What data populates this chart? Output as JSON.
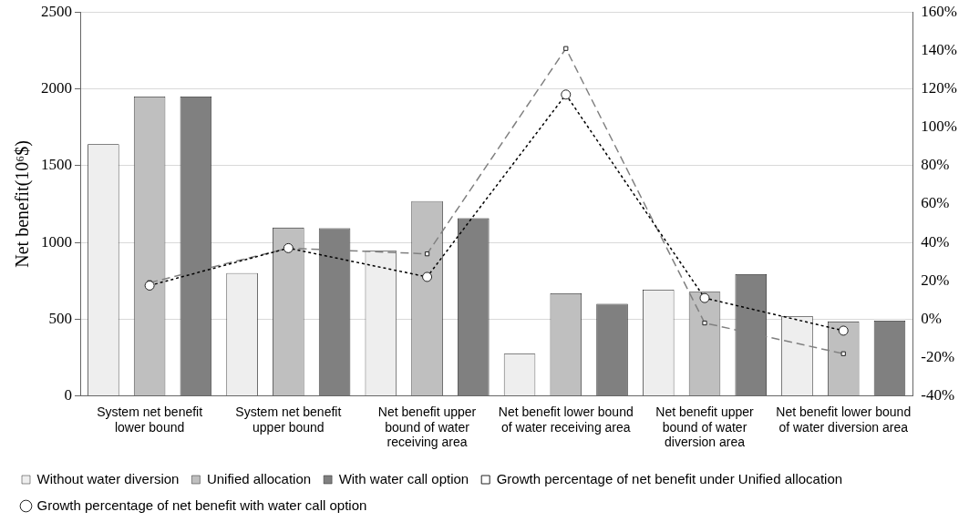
{
  "chart_data": {
    "type": "bar",
    "ylabel": "Net benefit(10⁶$)",
    "categories": [
      "System net benefit lower bound",
      "System net benefit upper bound",
      "Net benefit upper bound of water receiving area",
      "Net benefit lower bound of water receiving area",
      "Net benefit upper bound of water diversion area",
      "Net benefit lower bound of water diversion area"
    ],
    "series": [
      {
        "name": "Without water diversion",
        "color": "#eeeeee",
        "values": [
          1640,
          800,
          945,
          275,
          692,
          520
        ]
      },
      {
        "name": "Unified allocation",
        "color": "#bfbfbf",
        "values": [
          1950,
          1096,
          1269,
          668,
          679,
          485
        ]
      },
      {
        "name": "With water call option",
        "color": "#808080",
        "values": [
          1950,
          1092,
          1157,
          600,
          793,
          490
        ]
      },
      {
        "name": "Growth percentage of net benefit under Unified allocation",
        "type": "line",
        "axis": "y2",
        "color": "#808080",
        "marker": "square",
        "line_style": "dashed",
        "values": [
          19,
          37,
          34,
          141,
          -2,
          -18
        ]
      },
      {
        "name": "Growth percentage of net benefit with water call option",
        "type": "line",
        "axis": "y2",
        "color": "#000000",
        "marker": "circle",
        "line_style": "dotted",
        "values": [
          17.5,
          37,
          22,
          117,
          11,
          -6
        ]
      }
    ],
    "ylim": [
      0,
      2500
    ],
    "yticks": [
      0,
      500,
      1000,
      1500,
      2000,
      2500
    ],
    "y2lim": [
      -40,
      160
    ],
    "y2ticks": [
      {
        "value": -40,
        "label": "-40%"
      },
      {
        "value": -20,
        "label": "-20%"
      },
      {
        "value": 0,
        "label": "0%"
      },
      {
        "value": 20,
        "label": "20%"
      },
      {
        "value": 40,
        "label": "40%"
      },
      {
        "value": 60,
        "label": "60%"
      },
      {
        "value": 80,
        "label": "80%"
      },
      {
        "value": 100,
        "label": "100%"
      },
      {
        "value": 120,
        "label": "120%"
      },
      {
        "value": 140,
        "label": "140%"
      },
      {
        "value": 160,
        "label": "160%"
      }
    ],
    "grid": "y",
    "legend": "bottom"
  }
}
